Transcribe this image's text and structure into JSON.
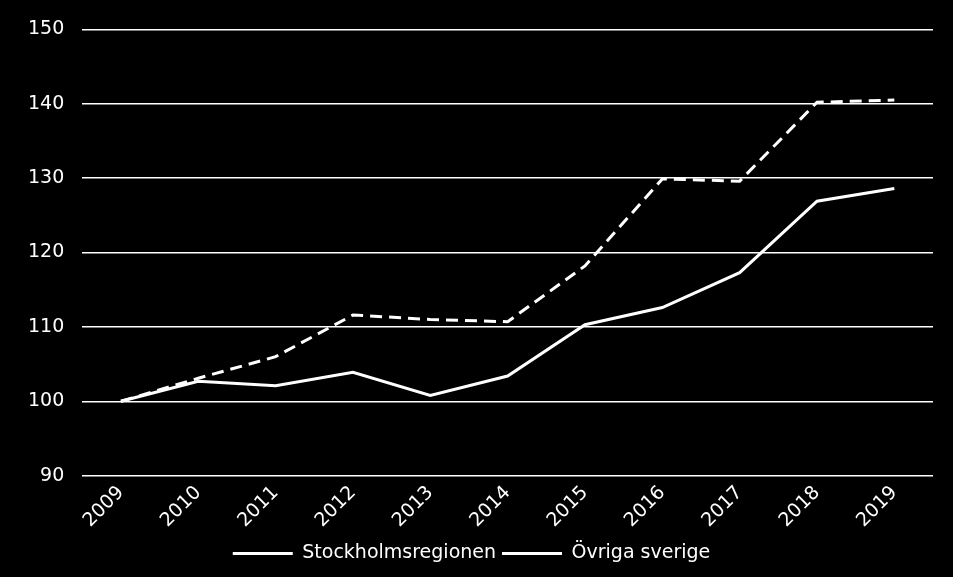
{
  "chart_data": {
    "type": "line",
    "categories": [
      "2009",
      "2010",
      "2011",
      "2012",
      "2013",
      "2014",
      "2015",
      "2016",
      "2017",
      "2018",
      "2019"
    ],
    "series": [
      {
        "name": "Stockholmsregionen",
        "color": "#ffffff",
        "line_style": "solid",
        "values": [
          100,
          102.7,
          102.1,
          103.9,
          100.8,
          103.4,
          110.3,
          112.6,
          117.3,
          126.9,
          128.6
        ]
      },
      {
        "name": "Övriga sverige",
        "color": "#ffffff",
        "line_style": "dashed",
        "values": [
          100,
          103.1,
          106.0,
          111.6,
          111.0,
          110.7,
          118.2,
          129.9,
          129.6,
          140.2,
          140.5
        ]
      }
    ],
    "ylim": [
      90,
      150
    ],
    "yticks": [
      90,
      100,
      110,
      120,
      130,
      140,
      150
    ],
    "grid": true,
    "legend": "bottom"
  }
}
